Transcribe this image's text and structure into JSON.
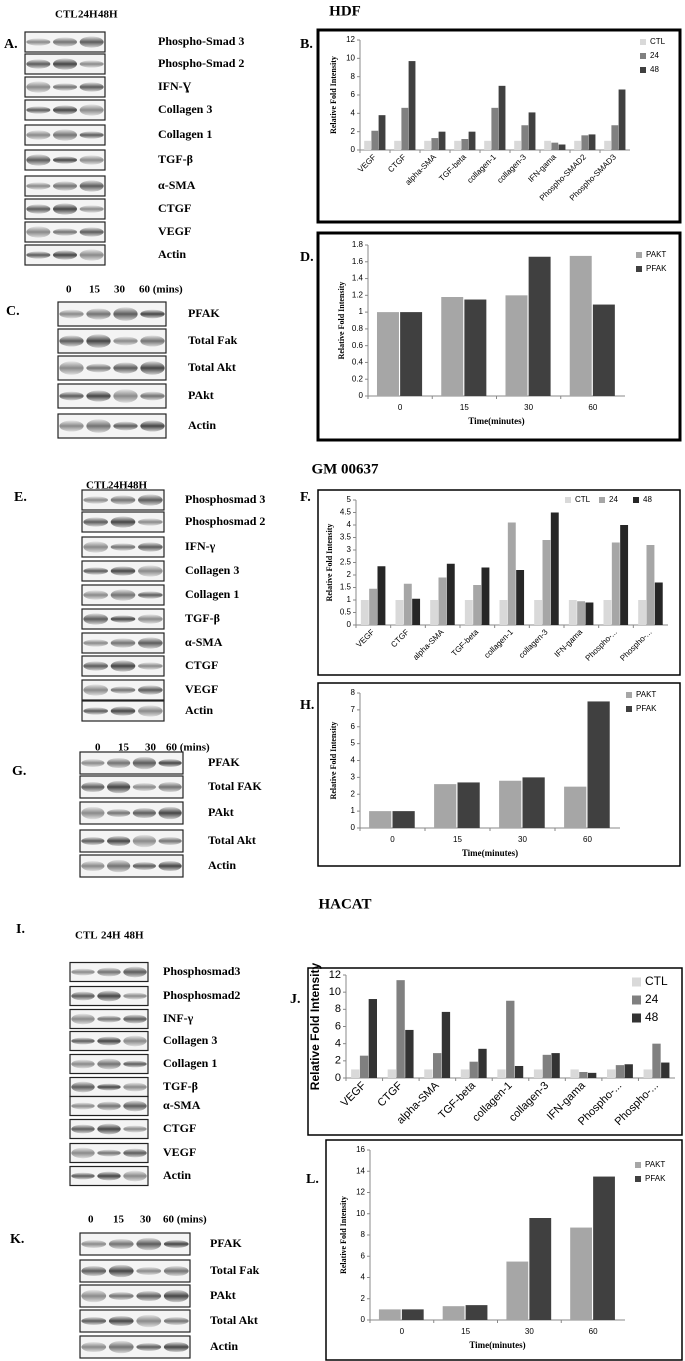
{
  "sections": [
    "HDF",
    "GM 00637",
    "HACAT"
  ],
  "panel_labels": [
    "A.",
    "B.",
    "C.",
    "D.",
    "E.",
    "F.",
    "G.",
    "H.",
    "I.",
    "J.",
    "K.",
    "L."
  ],
  "blots": [
    {
      "lanes": [
        "CTL",
        "24H",
        "48H"
      ],
      "labels": [
        "Phospho-Smad 3",
        "Phospho-Smad 2",
        "IFN-Ɣ",
        "Collagen 3",
        "Collagen 1",
        "TGF-β",
        "α-SMA",
        "CTGF",
        "VEGF",
        "Actin"
      ]
    },
    {
      "lanes": [
        "0",
        "15",
        "30",
        "60 (mins)"
      ],
      "labels": [
        "PFAK",
        "Total Fak",
        "Total Akt",
        "PAkt",
        "Actin"
      ]
    },
    {
      "lanes": [
        "CTL",
        "24H48H"
      ],
      "labels": [
        "Phosphosmad 3",
        "Phosphosmad 2",
        "IFN-γ",
        "Collagen 3",
        "Collagen 1",
        "TGF-β",
        "α-SMA",
        "CTGF",
        "VEGF",
        "Actin"
      ]
    },
    {
      "lanes": [
        "0",
        "15",
        "30",
        "60 (mins)"
      ],
      "labels": [
        "PFAK",
        "Total FAK",
        "PAkt",
        "Total Akt",
        "Actin"
      ]
    },
    {
      "lanes": [
        "CTL",
        "24H",
        "48H"
      ],
      "labels": [
        "Phosphosmad3",
        "Phosphosmad2",
        "INF-γ",
        "Collagen 3",
        "Collagen 1",
        "TGF-β",
        "α-SMA",
        "CTGF",
        "VEGF",
        "Actin"
      ]
    },
    {
      "lanes": [
        "0",
        "15",
        "30",
        "60 (mins)"
      ],
      "labels": [
        "PFAK",
        "Total Fak",
        "PAkt",
        "Total Akt",
        "Actin"
      ]
    }
  ],
  "chart_data": [
    {
      "type": "bar",
      "y_label": "Relative Fold Intensity",
      "legend": "upper right",
      "grid": false,
      "categories": [
        "VEGF",
        "CTGF",
        "alpha-SMA",
        "TGF-beta",
        "collagen-1",
        "collagen-3",
        "IFN-gama",
        "Phospho-SMAD2",
        "Phospho-SMAD3"
      ],
      "ylim": [
        0,
        12
      ],
      "yticks": [
        0,
        2,
        4,
        6,
        8,
        10,
        12
      ],
      "series": [
        {
          "name": "CTL",
          "color": "#d9d9d9",
          "values": [
            1,
            1,
            1,
            1,
            1,
            1,
            1,
            1,
            1
          ]
        },
        {
          "name": "24",
          "color": "#808080",
          "values": [
            2.1,
            4.6,
            1.3,
            1.2,
            4.6,
            2.7,
            0.8,
            1.6,
            2.7
          ]
        },
        {
          "name": "48",
          "color": "#404040",
          "values": [
            3.8,
            9.7,
            2.0,
            2.0,
            7.0,
            4.1,
            0.6,
            1.7,
            6.6
          ]
        }
      ]
    },
    {
      "type": "bar",
      "y_label": "Relative Fold Intensity",
      "x_label": "Time(minutes)",
      "legend": "upper right",
      "grid": false,
      "categories": [
        "0",
        "15",
        "30",
        "60"
      ],
      "ylim": [
        0,
        1.8
      ],
      "yticks": [
        0,
        0.2,
        0.4,
        0.6,
        0.8,
        1,
        1.2,
        1.4,
        1.6,
        1.8
      ],
      "series": [
        {
          "name": "PAKT",
          "color": "#a6a6a6",
          "values": [
            1,
            1.18,
            1.2,
            1.67
          ]
        },
        {
          "name": "PFAK",
          "color": "#404040",
          "values": [
            1,
            1.15,
            1.66,
            1.09
          ]
        }
      ]
    },
    {
      "type": "bar",
      "y_label": "Relative Fold Intensity",
      "legend": "upper right",
      "grid": false,
      "categories": [
        "VEGF",
        "CTGF",
        "alpha-SMA",
        "TGF-beta",
        "collagen-1",
        "collagen-3",
        "IFN-gama",
        "Phospho-...",
        "Phospho-..."
      ],
      "ylim": [
        0,
        5
      ],
      "yticks": [
        0,
        0.5,
        1,
        1.5,
        2,
        2.5,
        3,
        3.5,
        4,
        4.5,
        5
      ],
      "series": [
        {
          "name": "CTL",
          "color": "#d9d9d9",
          "values": [
            1,
            1,
            1,
            1,
            1,
            1,
            1,
            1,
            1
          ]
        },
        {
          "name": "24",
          "color": "#a6a6a6",
          "values": [
            1.45,
            1.65,
            1.9,
            1.6,
            4.1,
            3.4,
            0.95,
            3.3,
            3.2
          ]
        },
        {
          "name": "48",
          "color": "#262626",
          "values": [
            2.35,
            1.05,
            2.45,
            2.3,
            2.2,
            4.5,
            0.9,
            4.0,
            1.7
          ]
        }
      ]
    },
    {
      "type": "bar",
      "y_label": "Relative Fold Intensity",
      "x_label": "Time(minutes)",
      "legend": "upper right",
      "grid": false,
      "categories": [
        "0",
        "15",
        "30",
        "60"
      ],
      "ylim": [
        0,
        8
      ],
      "yticks": [
        0,
        1,
        2,
        3,
        4,
        5,
        6,
        7,
        8
      ],
      "series": [
        {
          "name": "PAKT",
          "color": "#a6a6a6",
          "values": [
            1,
            2.6,
            2.8,
            2.45
          ]
        },
        {
          "name": "PFAK",
          "color": "#404040",
          "values": [
            1,
            2.7,
            3.0,
            7.5
          ]
        }
      ]
    },
    {
      "type": "bar",
      "y_label": "Relative Fold Intensity",
      "legend": "upper right",
      "grid": false,
      "categories": [
        "VEGF",
        "CTGF",
        "alpha-SMA",
        "TGF-beta",
        "collagen-1",
        "collagen-3",
        "IFN-gama",
        "Phospho-...",
        "Phospho-..."
      ],
      "ylim": [
        0,
        12
      ],
      "yticks": [
        0,
        2,
        4,
        6,
        8,
        10,
        12
      ],
      "series": [
        {
          "name": "CTL",
          "color": "#d9d9d9",
          "values": [
            1,
            1,
            1,
            1,
            1,
            1,
            1,
            1,
            1
          ]
        },
        {
          "name": "24",
          "color": "#808080",
          "values": [
            2.6,
            11.4,
            2.9,
            1.9,
            9.0,
            2.7,
            0.7,
            1.5,
            4.0
          ]
        },
        {
          "name": "48",
          "color": "#333333",
          "values": [
            9.2,
            5.6,
            7.7,
            3.4,
            1.4,
            2.9,
            0.6,
            1.6,
            1.8
          ]
        }
      ]
    },
    {
      "type": "bar",
      "y_label": "Relative Fold Intensity",
      "x_label": "Time(minutes)",
      "legend": "upper right",
      "grid": false,
      "categories": [
        "0",
        "15",
        "30",
        "60"
      ],
      "ylim": [
        0,
        16
      ],
      "yticks": [
        0,
        2,
        4,
        6,
        8,
        10,
        12,
        14,
        16
      ],
      "series": [
        {
          "name": "PAKT",
          "color": "#a6a6a6",
          "values": [
            1,
            1.3,
            5.5,
            8.7
          ]
        },
        {
          "name": "PFAK",
          "color": "#404040",
          "values": [
            1,
            1.4,
            9.6,
            13.5
          ]
        }
      ]
    }
  ]
}
